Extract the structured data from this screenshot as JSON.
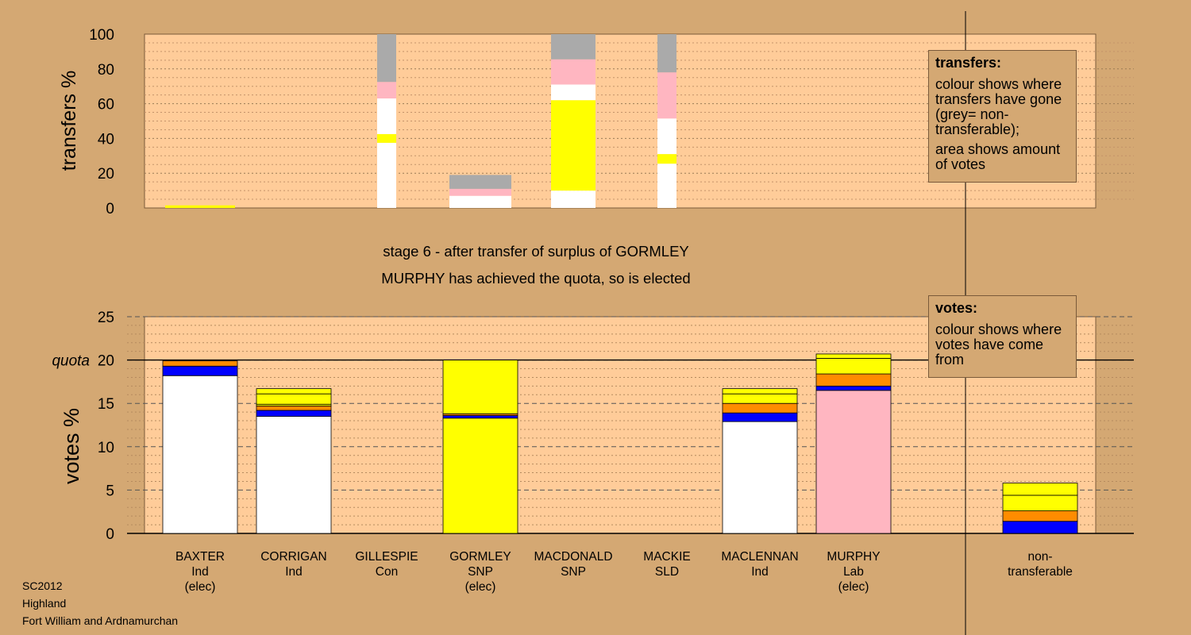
{
  "chart_data": [
    {
      "type": "bar",
      "stacked": true,
      "ylabel": "transfers %",
      "ylim": [
        0,
        100
      ],
      "yticks": [
        0,
        20,
        40,
        60,
        80,
        100
      ],
      "grid": true,
      "categories": [
        "BAXTER",
        "CORRIGAN",
        "GILLESPIE",
        "GORMLEY",
        "MACDONALD",
        "MACKIE",
        "MACLENNAN",
        "MURPHY"
      ],
      "series_colors": [
        "#ffffff",
        "#ffff00",
        "#ffb6c1",
        "#aaaaaa"
      ],
      "bars": [
        {
          "category": "BAXTER",
          "segments": [
            {
              "value": 1.5,
              "color": "#ffff00"
            }
          ]
        },
        {
          "category": "GILLESPIE",
          "segments": [
            {
              "value": 37.5,
              "color": "#ffffff"
            },
            {
              "value": 5,
              "color": "#ffff00"
            },
            {
              "value": 20.5,
              "color": "#ffffff"
            },
            {
              "value": 9.5,
              "color": "#ffb6c1"
            },
            {
              "value": 27.5,
              "color": "#aaaaaa"
            }
          ]
        },
        {
          "category": "GORMLEY",
          "segments": [
            {
              "value": 7,
              "color": "#ffffff"
            },
            {
              "value": 4,
              "color": "#ffb6c1"
            },
            {
              "value": 8,
              "color": "#aaaaaa"
            }
          ]
        },
        {
          "category": "MACDONALD",
          "segments": [
            {
              "value": 10,
              "color": "#ffffff"
            },
            {
              "value": 52,
              "color": "#ffff00"
            },
            {
              "value": 9,
              "color": "#ffffff"
            },
            {
              "value": 14.5,
              "color": "#ffb6c1"
            },
            {
              "value": 14.5,
              "color": "#aaaaaa"
            }
          ]
        },
        {
          "category": "MACKIE",
          "segments": [
            {
              "value": 25.5,
              "color": "#ffffff"
            },
            {
              "value": 5.5,
              "color": "#ffff00"
            },
            {
              "value": 20.5,
              "color": "#ffffff"
            },
            {
              "value": 26.5,
              "color": "#ffb6c1"
            },
            {
              "value": 22,
              "color": "#aaaaaa"
            }
          ]
        }
      ]
    },
    {
      "type": "bar",
      "stacked": true,
      "ylabel": "votes %",
      "ylim": [
        0,
        25
      ],
      "yticks": [
        0,
        5,
        10,
        15,
        20,
        25
      ],
      "quota": 20,
      "quota_label": "quota",
      "categories": [
        "BAXTER",
        "CORRIGAN",
        "GILLESPIE",
        "GORMLEY",
        "MACDONALD",
        "MACKIE",
        "MACLENNAN",
        "MURPHY",
        "non-transferable"
      ],
      "bars": [
        {
          "category": "BAXTER",
          "segments": [
            {
              "value": 18.2,
              "color": "#ffffff"
            },
            {
              "value": 1.1,
              "color": "#0000ff"
            },
            {
              "value": 0.6,
              "color": "#ff8c00"
            }
          ]
        },
        {
          "category": "CORRIGAN",
          "segments": [
            {
              "value": 13.5,
              "color": "#ffffff"
            },
            {
              "value": 0.7,
              "color": "#0000ff"
            },
            {
              "value": 0.5,
              "color": "#ff8c00"
            },
            {
              "value": 0.2,
              "color": "#ffff00"
            },
            {
              "value": 1.2,
              "color": "#ffff00"
            },
            {
              "value": 0.6,
              "color": "#ffff00"
            }
          ]
        },
        {
          "category": "GORMLEY",
          "segments": [
            {
              "value": 13.3,
              "color": "#ffff00"
            },
            {
              "value": 0.3,
              "color": "#0000ff"
            },
            {
              "value": 0.2,
              "color": "#ff8c00"
            },
            {
              "value": 6.2,
              "color": "#ffff00"
            }
          ]
        },
        {
          "category": "MACLENNAN",
          "segments": [
            {
              "value": 12.9,
              "color": "#ffffff"
            },
            {
              "value": 1.0,
              "color": "#0000ff"
            },
            {
              "value": 1.1,
              "color": "#ff8c00"
            },
            {
              "value": 1.1,
              "color": "#ffff00"
            },
            {
              "value": 0.6,
              "color": "#ffff00"
            }
          ]
        },
        {
          "category": "MURPHY",
          "segments": [
            {
              "value": 16.5,
              "color": "#ffb6c1"
            },
            {
              "value": 0.5,
              "color": "#0000ff"
            },
            {
              "value": 1.4,
              "color": "#ff8c00"
            },
            {
              "value": 1.8,
              "color": "#ffff00"
            },
            {
              "value": 0.5,
              "color": "#ffff00"
            }
          ]
        },
        {
          "category": "non-transferable",
          "segments": [
            {
              "value": 1.4,
              "color": "#0000ff"
            },
            {
              "value": 1.2,
              "color": "#ff8c00"
            },
            {
              "value": 1.8,
              "color": "#ffff00"
            },
            {
              "value": 1.4,
              "color": "#ffff00"
            }
          ]
        }
      ]
    }
  ],
  "labels": {
    "stage_line1": "stage 6 - after transfer of surplus of GORMLEY",
    "stage_line2": "MURPHY has achieved the quota, so is elected",
    "candidates": [
      {
        "lines": [
          "BAXTER",
          "Ind",
          "(elec)"
        ]
      },
      {
        "lines": [
          "CORRIGAN",
          "Ind"
        ]
      },
      {
        "lines": [
          "GILLESPIE",
          "Con"
        ]
      },
      {
        "lines": [
          "GORMLEY",
          "SNP",
          "(elec)"
        ]
      },
      {
        "lines": [
          "MACDONALD",
          "SNP"
        ]
      },
      {
        "lines": [
          "MACKIE",
          "SLD"
        ]
      },
      {
        "lines": [
          "MACLENNAN",
          "Ind"
        ]
      },
      {
        "lines": [
          "MURPHY",
          "Lab",
          "(elec)"
        ]
      },
      {
        "lines": [
          "non-",
          "transferable"
        ]
      }
    ]
  },
  "legend_transfers": {
    "title": "transfers:",
    "line1": "colour shows where transfers have gone (grey= non-transferable);",
    "line2": "area shows amount of votes"
  },
  "legend_votes": {
    "title": "votes:",
    "line1": "colour shows where votes have come from"
  },
  "footer": {
    "line1": "SC2012",
    "line2": "Highland",
    "line3": "Fort William and Ardnamurchan"
  },
  "colors": {
    "background": "#d4a873",
    "plot": "#ffcc99",
    "independent": "#ffffff",
    "snp": "#ffff00",
    "labour": "#ffb6c1",
    "conservative": "#0000ff",
    "libdem": "#ff8c00",
    "nontransferable": "#aaaaaa"
  }
}
